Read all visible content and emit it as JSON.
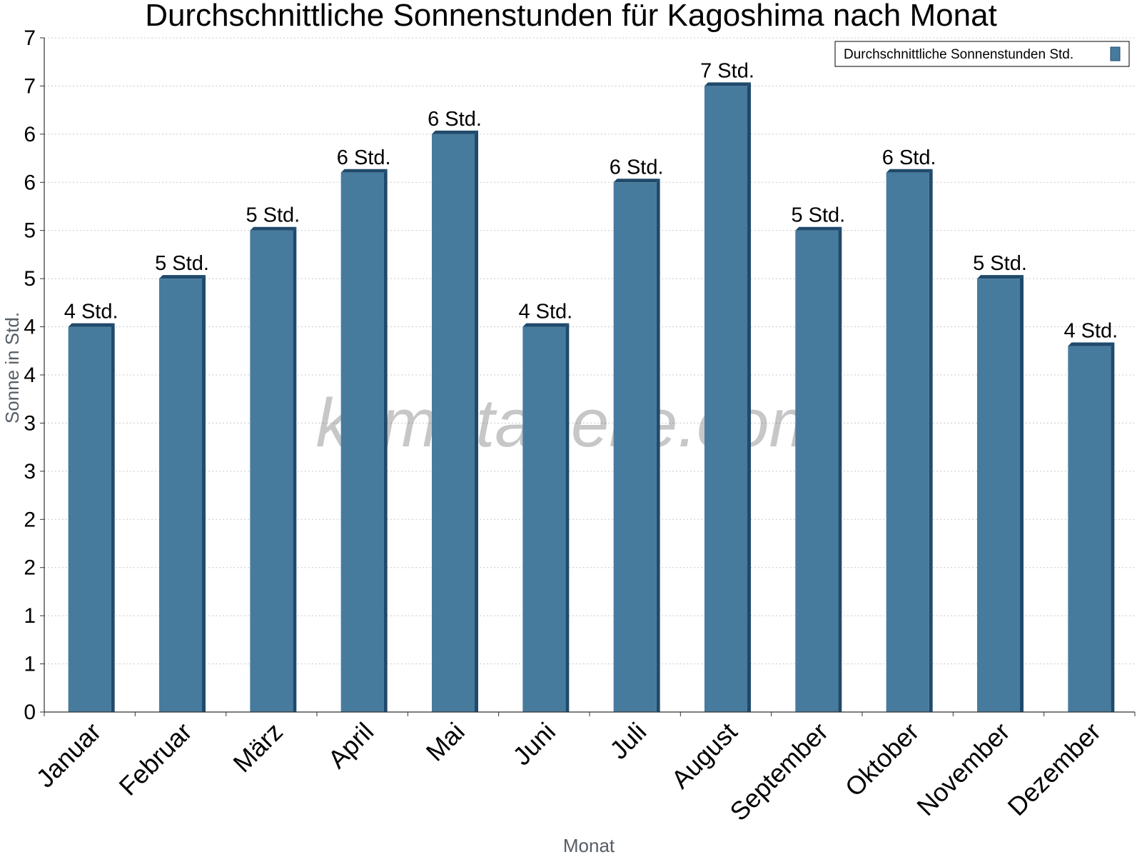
{
  "chart_data": {
    "type": "bar",
    "title": "Durchschnittliche Sonnenstunden für Kagoshima nach Monat",
    "xlabel": "Monat",
    "ylabel": "Sonne in Std.",
    "categories": [
      "Januar",
      "Februar",
      "März",
      "April",
      "Mai",
      "Juni",
      "Juli",
      "August",
      "September",
      "Oktober",
      "November",
      "Dezember"
    ],
    "series": [
      {
        "name": "Durchschnittliche Sonnenstunden Std.",
        "values": [
          4.0,
          4.5,
          5.0,
          5.6,
          6.0,
          4.0,
          5.5,
          6.5,
          5.0,
          5.6,
          4.5,
          3.8
        ],
        "labels": [
          "4 Std.",
          "5 Std.",
          "5 Std.",
          "6 Std.",
          "6 Std.",
          "4 Std.",
          "6 Std.",
          "7 Std.",
          "5 Std.",
          "6 Std.",
          "5 Std.",
          "4 Std."
        ]
      }
    ],
    "ylim": [
      0,
      7
    ],
    "yticks": [
      0,
      0.5,
      1,
      1.5,
      2,
      2.5,
      3,
      3.5,
      4,
      4.5,
      5,
      5.5,
      6,
      6.5,
      7
    ],
    "ytick_labels": [
      "0",
      "1",
      "1",
      "2",
      "2",
      "3",
      "3",
      "4",
      "4",
      "5",
      "5",
      "6",
      "6",
      "7",
      "7"
    ],
    "grid": true,
    "legend_position": "top-right",
    "watermark": "klimatabelle.com",
    "colors": {
      "bar": "#477b9e",
      "bar_side": "#1f4a6c",
      "bar_top": "#1f4a6c",
      "grid": "#c8c8c8",
      "axis": "#333333"
    }
  }
}
